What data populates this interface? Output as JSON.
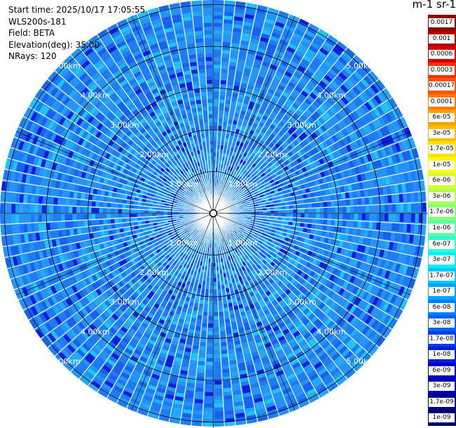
{
  "info": {
    "start_time": "Start time: 2025/10/17 17:05:55",
    "device": "WLS200s-181",
    "field": "Field: BETA",
    "elevation": "Elevation(deg): 35.00",
    "nrays": "NRays: 120"
  },
  "colorbar": {
    "title": "m-1 sr-1",
    "labels": [
      "0.0017",
      "0.001",
      "0.0006",
      "0.0003",
      "0.00017",
      "0.0001",
      "6e-05",
      "3e-05",
      "1.7e-05",
      "1e-05",
      "6e-06",
      "3e-06",
      "1.7e-06",
      "1e-06",
      "6e-07",
      "3e-07",
      "1.7e-07",
      "1e-07",
      "6e-08",
      "3e-08",
      "1.7e-08",
      "1e-08",
      "6e-09",
      "3e-09",
      "1.7e-09",
      "1e-09"
    ],
    "colors": [
      "#8b0000",
      "#b00000",
      "#d40000",
      "#ff2a00",
      "#ff5500",
      "#ff7a00",
      "#ff9f00",
      "#ffbf00",
      "#ffe100",
      "#ffff00",
      "#d8ff2a",
      "#b0ff55",
      "#88ff7a",
      "#5cffa8",
      "#2affd4",
      "#00f0ff",
      "#00c8ff",
      "#00a4ff",
      "#0080ff",
      "#0064f0",
      "#0040e6",
      "#0020d4",
      "#0000c8",
      "#0000aa",
      "#00008b",
      "#00006a"
    ]
  },
  "chart_data": {
    "type": "heatmap",
    "projection": "polar PPI",
    "field": "BETA",
    "elevation_deg": 35.0,
    "n_rays": 120,
    "range_rings_km": [
      1,
      2,
      3,
      4,
      5
    ],
    "range_labels": [
      "1.00km",
      "2.00km",
      "3.00km",
      "4.00km",
      "5.00km"
    ],
    "color_scale": "log",
    "value_range": [
      1e-09,
      0.0017
    ],
    "dominant_value_range": [
      1e-08,
      1e-07
    ],
    "grid": true
  }
}
